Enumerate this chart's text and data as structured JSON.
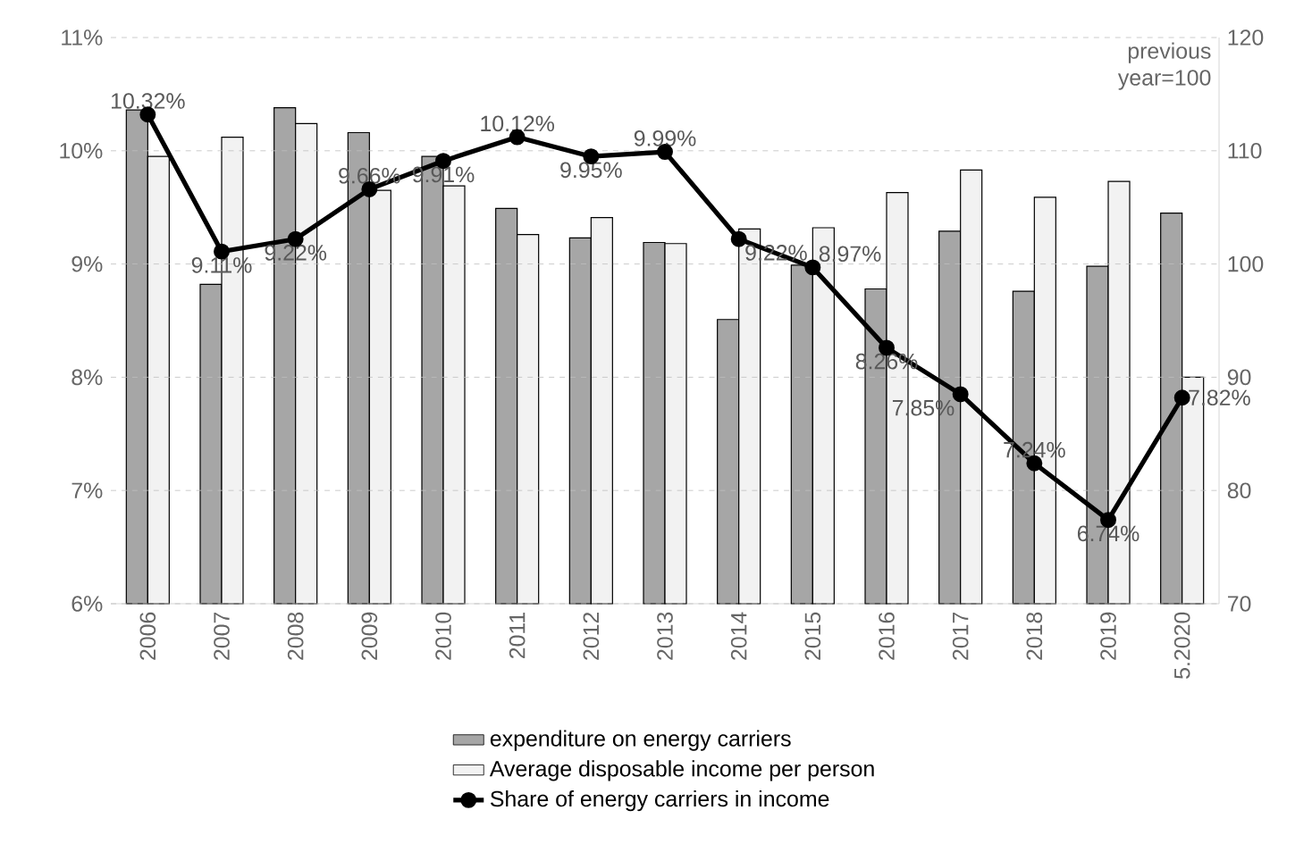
{
  "chart_data": {
    "type": "bar",
    "categories": [
      "2006",
      "2007",
      "2008",
      "2009",
      "2010",
      "2011",
      "2012",
      "2013",
      "2014",
      "2015",
      "2016",
      "2017",
      "2018",
      "2019",
      "5.2020"
    ],
    "series": [
      {
        "name": "expenditure on energy carriers",
        "color": "#a6a6a6",
        "axis": "y2",
        "values": [
          113.6,
          98.2,
          113.8,
          111.6,
          109.5,
          104.9,
          102.3,
          101.9,
          95.1,
          99.9,
          97.8,
          102.9,
          97.6,
          99.8,
          104.5
        ]
      },
      {
        "name": "Average disposable income per person",
        "color": "#f2f2f2",
        "axis": "y2",
        "values": [
          109.5,
          111.2,
          112.4,
          106.5,
          106.9,
          102.6,
          104.1,
          101.8,
          103.1,
          103.2,
          106.3,
          108.3,
          105.9,
          107.3,
          90.0
        ]
      },
      {
        "name": "Share of energy carriers in income",
        "color": "#000000",
        "type": "line",
        "marker": "circle",
        "values": [
          10.32,
          9.11,
          9.22,
          9.66,
          9.91,
          10.12,
          9.95,
          9.99,
          9.22,
          8.97,
          8.26,
          7.85,
          7.24,
          6.74,
          7.82
        ],
        "value_labels": [
          "10.32%",
          "9.11%",
          "9.22%",
          "9.66%",
          "9.91%",
          "10.12%",
          "9.95%",
          "9.99%",
          "9.22%",
          "8.97%",
          "8.26%",
          "7.85%",
          "7.24%",
          "6.74%",
          "7.82%"
        ]
      }
    ],
    "ylim": [
      6,
      11
    ],
    "yticks": [
      {
        "value": 6,
        "label": "6%"
      },
      {
        "value": 7,
        "label": "7%"
      },
      {
        "value": 8,
        "label": "8%"
      },
      {
        "value": 9,
        "label": "9%"
      },
      {
        "value": 10,
        "label": "10%"
      },
      {
        "value": 11,
        "label": "11%"
      }
    ],
    "y2lim": [
      70,
      120
    ],
    "y2ticks": [
      70,
      80,
      90,
      100,
      110,
      120
    ],
    "y2label": "previous year=100",
    "grid": "y",
    "legend": "bottom"
  }
}
